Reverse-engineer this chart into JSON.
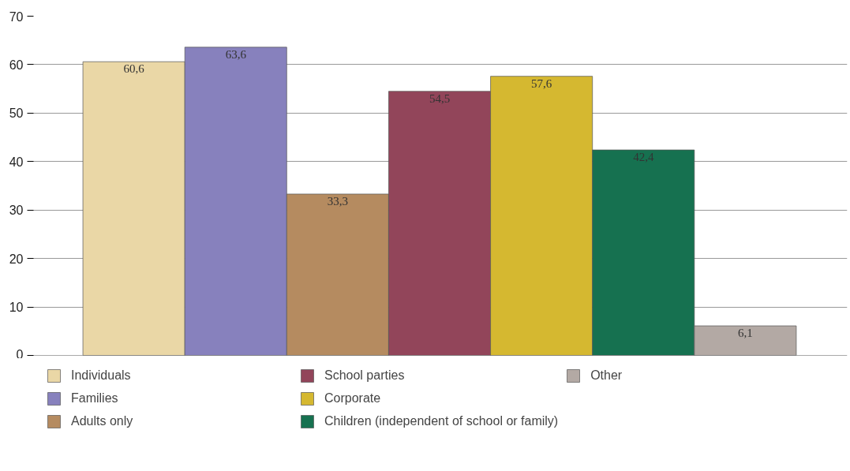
{
  "chart_data": {
    "type": "bar",
    "categories": [
      null,
      null,
      null,
      null,
      null,
      null,
      null
    ],
    "series": [
      {
        "name": "Individuals",
        "color": "#ead7a6",
        "values": [
          60.6,
          null,
          null,
          null,
          null,
          null,
          null
        ],
        "value_labels": [
          "60,6",
          null,
          null,
          null,
          null,
          null,
          null
        ]
      },
      {
        "name": "Families",
        "color": "#8781bd",
        "values": [
          null,
          63.6,
          null,
          null,
          null,
          null,
          null
        ],
        "value_labels": [
          null,
          "63,6",
          null,
          null,
          null,
          null,
          null
        ]
      },
      {
        "name": "Adults only",
        "color": "#b58b60",
        "values": [
          null,
          null,
          33.3,
          null,
          null,
          null,
          null
        ],
        "value_labels": [
          null,
          null,
          "33,3",
          null,
          null,
          null,
          null
        ]
      },
      {
        "name": "School parties",
        "color": "#92455a",
        "values": [
          null,
          null,
          null,
          54.5,
          null,
          null,
          null
        ],
        "value_labels": [
          null,
          null,
          null,
          "54,5",
          null,
          null,
          null
        ]
      },
      {
        "name": "Corporate",
        "color": "#d5b830",
        "values": [
          null,
          null,
          null,
          null,
          57.6,
          null,
          null
        ],
        "value_labels": [
          null,
          null,
          null,
          null,
          "57,6",
          null,
          null
        ]
      },
      {
        "name": "Children (independent of school or family)",
        "color": "#167150",
        "values": [
          null,
          null,
          null,
          null,
          null,
          42.4,
          null
        ],
        "value_labels": [
          null,
          null,
          null,
          null,
          null,
          "42,4",
          null
        ]
      },
      {
        "name": "Other",
        "color": "#b3a9a4",
        "values": [
          null,
          null,
          null,
          null,
          null,
          null,
          6.1
        ],
        "value_labels": [
          null,
          null,
          null,
          null,
          null,
          null,
          "6,1"
        ]
      }
    ],
    "ylim": [
      0,
      70
    ],
    "yticks": [
      0,
      10,
      20,
      30,
      40,
      50,
      60,
      70
    ],
    "grid": "y",
    "legend": "bottom",
    "tick_labels": "y"
  }
}
